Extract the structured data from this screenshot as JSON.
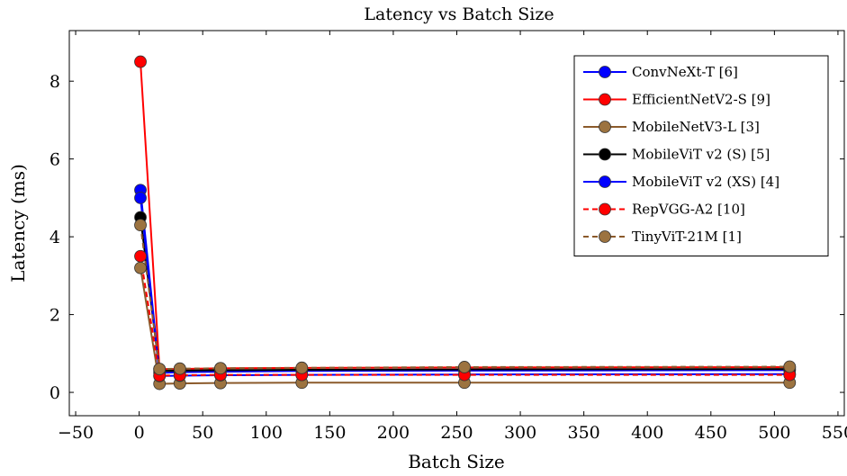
{
  "chart_data": {
    "type": "line",
    "title": "Latency vs Batch Size",
    "xlabel": "Batch Size",
    "ylabel": "Latency (ms)",
    "xlim": [
      -55,
      555
    ],
    "ylim": [
      -0.6,
      9.3
    ],
    "xticks": [
      -50,
      0,
      50,
      100,
      150,
      200,
      250,
      300,
      350,
      400,
      450,
      500,
      550
    ],
    "xtick_labels": [
      "−50",
      "0",
      "50",
      "100",
      "150",
      "200",
      "250",
      "300",
      "350",
      "400",
      "450",
      "500",
      "550"
    ],
    "yticks": [
      0,
      2,
      4,
      6,
      8
    ],
    "ytick_labels": [
      "0",
      "2",
      "4",
      "6",
      "8"
    ],
    "grid": false,
    "legend_position": "top-right",
    "x": [
      1,
      16,
      32,
      64,
      128,
      256,
      512
    ],
    "series": [
      {
        "name": "ConvNeXt-T [6]",
        "color": "#0000ff",
        "dashed": false,
        "values": [
          5.2,
          0.5,
          0.52,
          0.53,
          0.55,
          0.56,
          0.57
        ]
      },
      {
        "name": "EfficientNetV2-S [9]",
        "color": "#ff0000",
        "dashed": false,
        "values": [
          8.5,
          0.6,
          0.6,
          0.62,
          0.63,
          0.64,
          0.65
        ]
      },
      {
        "name": "MobileNetV3-L [3]",
        "color": "#8b5a2b",
        "dashed": false,
        "values": [
          3.2,
          0.22,
          0.23,
          0.24,
          0.25,
          0.25,
          0.25
        ]
      },
      {
        "name": "MobileViT v2 (S) [5]",
        "color": "#000000",
        "dashed": false,
        "values": [
          4.5,
          0.55,
          0.56,
          0.57,
          0.58,
          0.59,
          0.6
        ]
      },
      {
        "name": "MobileViT v2 (XS) [4]",
        "color": "#0000ff",
        "dashed": false,
        "values": [
          5.0,
          0.42,
          0.43,
          0.44,
          0.45,
          0.46,
          0.47
        ]
      },
      {
        "name": "RepVGG-A2 [10]",
        "color": "#ff0000",
        "dashed": true,
        "values": [
          3.5,
          0.43,
          0.44,
          0.45,
          0.45,
          0.45,
          0.45
        ]
      },
      {
        "name": "TinyViT-21M [1]",
        "color": "#8b5a2b",
        "dashed": true,
        "values": [
          4.3,
          0.6,
          0.61,
          0.62,
          0.63,
          0.65,
          0.66
        ]
      }
    ]
  }
}
